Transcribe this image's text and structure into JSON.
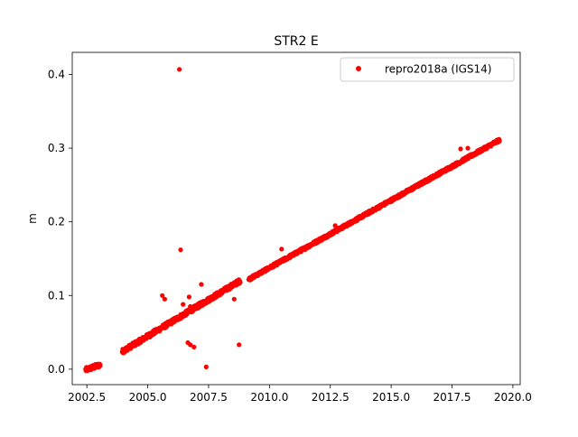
{
  "chart_data": {
    "type": "scatter",
    "title": "STR2 E",
    "xlabel": "",
    "ylabel": "m",
    "xlim": [
      2001.9,
      2020.3
    ],
    "ylim": [
      -0.021,
      0.43
    ],
    "x_ticks": [
      2002.5,
      2005.0,
      2007.5,
      2010.0,
      2012.5,
      2015.0,
      2017.5,
      2020.0
    ],
    "x_tick_labels": [
      "2002.5",
      "2005.0",
      "2007.5",
      "2010.0",
      "2012.5",
      "2015.0",
      "2017.5",
      "2020.0"
    ],
    "y_ticks": [
      0.0,
      0.1,
      0.2,
      0.3,
      0.4
    ],
    "y_tick_labels": [
      "0.0",
      "0.1",
      "0.2",
      "0.3",
      "0.4"
    ],
    "grid": false,
    "legend_position": "upper right",
    "series": [
      {
        "name": "repro2018a (IGS14)",
        "color": "#ff0000",
        "marker": "circle",
        "segments": [
          {
            "x_start": 2002.45,
            "x_end": 2003.05,
            "y_start": -0.001,
            "y_end": 0.006,
            "noise": 0.003
          },
          {
            "x_start": 2003.95,
            "x_end": 2008.8,
            "y_start": 0.024,
            "y_end": 0.12,
            "noise": 0.003
          },
          {
            "x_start": 2009.15,
            "x_end": 2019.45,
            "y_start": 0.122,
            "y_end": 0.311,
            "noise": 0.002
          }
        ],
        "outliers": [
          {
            "x": 2006.3,
            "y": 0.407
          },
          {
            "x": 2006.35,
            "y": 0.162
          },
          {
            "x": 2005.6,
            "y": 0.1
          },
          {
            "x": 2005.7,
            "y": 0.095
          },
          {
            "x": 2006.45,
            "y": 0.088
          },
          {
            "x": 2006.7,
            "y": 0.098
          },
          {
            "x": 2006.75,
            "y": 0.085
          },
          {
            "x": 2007.2,
            "y": 0.115
          },
          {
            "x": 2006.65,
            "y": 0.036
          },
          {
            "x": 2006.75,
            "y": 0.033
          },
          {
            "x": 2006.9,
            "y": 0.03
          },
          {
            "x": 2007.4,
            "y": 0.003
          },
          {
            "x": 2008.75,
            "y": 0.033
          },
          {
            "x": 2008.55,
            "y": 0.095
          },
          {
            "x": 2010.5,
            "y": 0.163
          },
          {
            "x": 2012.7,
            "y": 0.195
          },
          {
            "x": 2017.85,
            "y": 0.299
          },
          {
            "x": 2018.15,
            "y": 0.3
          }
        ]
      }
    ]
  }
}
